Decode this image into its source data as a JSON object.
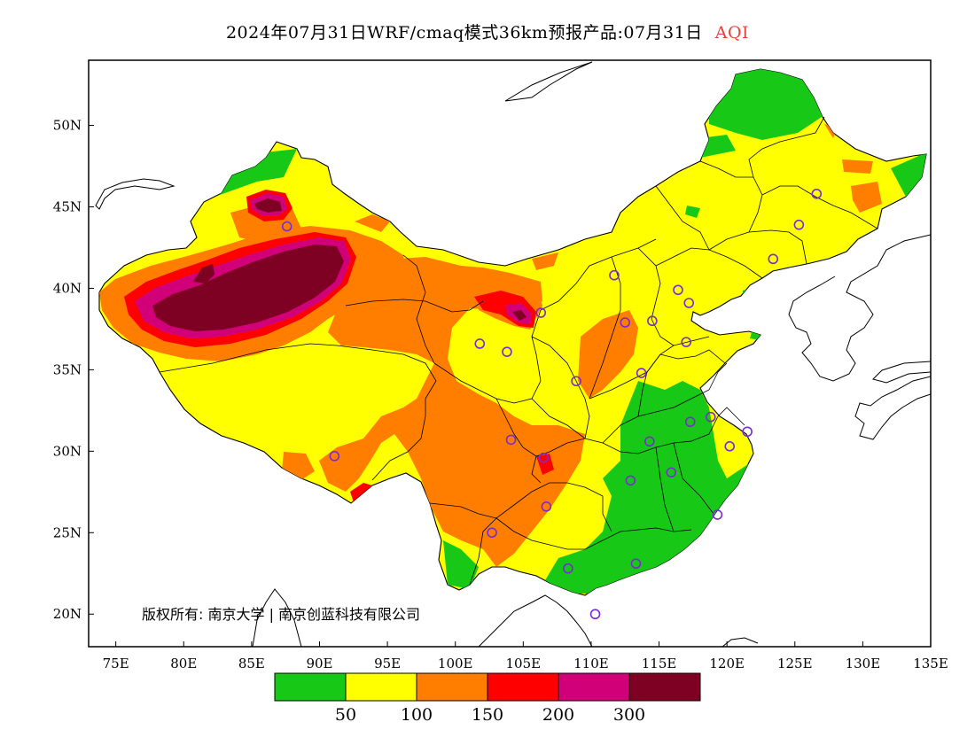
{
  "title": {
    "main": "2024年07月31日WRF/cmaq模式36km预报产品:07月31日",
    "variable": "AQI"
  },
  "copyright": "版权所有: 南京大学 | 南京创蓝科技有限公司",
  "axes": {
    "x_ticks": [
      "75E",
      "80E",
      "85E",
      "90E",
      "95E",
      "100E",
      "105E",
      "110E",
      "115E",
      "120E",
      "125E",
      "130E",
      "135E"
    ],
    "y_ticks": [
      "50N",
      "45N",
      "40N",
      "35N",
      "30N",
      "25N",
      "20N"
    ],
    "x_range": [
      73,
      135
    ],
    "y_range": [
      18,
      54
    ]
  },
  "colorbar": {
    "colors": [
      "#17c817",
      "#ffff00",
      "#ff7e00",
      "#ff0000",
      "#d20078",
      "#7e0023"
    ],
    "labels": [
      "50",
      "100",
      "150",
      "200",
      "300"
    ]
  },
  "sites": [
    [
      87.6,
      43.8
    ],
    [
      91.1,
      29.7
    ],
    [
      101.8,
      36.6
    ],
    [
      103.8,
      36.1
    ],
    [
      106.3,
      38.5
    ],
    [
      108.9,
      34.3
    ],
    [
      104.1,
      30.7
    ],
    [
      106.5,
      29.6
    ],
    [
      106.7,
      26.6
    ],
    [
      102.7,
      25.0
    ],
    [
      108.3,
      22.8
    ],
    [
      110.3,
      20.0
    ],
    [
      113.3,
      23.1
    ],
    [
      112.9,
      28.2
    ],
    [
      114.3,
      30.6
    ],
    [
      115.9,
      28.7
    ],
    [
      117.3,
      31.8
    ],
    [
      118.8,
      32.1
    ],
    [
      120.2,
      30.3
    ],
    [
      121.5,
      31.2
    ],
    [
      119.3,
      26.1
    ],
    [
      113.7,
      34.8
    ],
    [
      117.0,
      36.7
    ],
    [
      114.5,
      38.0
    ],
    [
      112.5,
      37.9
    ],
    [
      111.7,
      40.8
    ],
    [
      116.4,
      39.9
    ],
    [
      117.2,
      39.1
    ],
    [
      123.4,
      41.8
    ],
    [
      125.3,
      43.9
    ],
    [
      126.6,
      45.8
    ]
  ]
}
